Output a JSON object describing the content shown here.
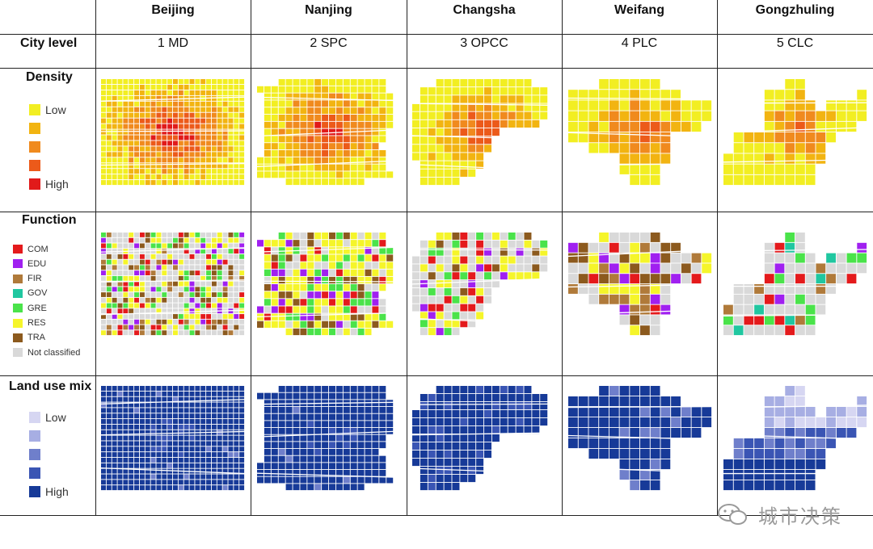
{
  "columns": [
    "Beijing",
    "Nanjing",
    "Changsha",
    "Weifang",
    "Gongzhuling"
  ],
  "city_level": {
    "label": "City level",
    "values": [
      "1 MD",
      "2 SPC",
      "3 OPCC",
      "4 PLC",
      "5 CLC"
    ]
  },
  "density": {
    "label": "Density",
    "legend": [
      {
        "text": "Low",
        "color": "#f2ee22"
      },
      {
        "text": "",
        "color": "#f2b411"
      },
      {
        "text": "",
        "color": "#f08a1e"
      },
      {
        "text": "",
        "color": "#ec5a1a"
      },
      {
        "text": "High",
        "color": "#e11a1a"
      }
    ]
  },
  "function": {
    "label": "Function",
    "legend": [
      {
        "text": "COM",
        "color": "#e41a1c"
      },
      {
        "text": "EDU",
        "color": "#a020f0"
      },
      {
        "text": "FIR",
        "color": "#b07a3a"
      },
      {
        "text": "GOV",
        "color": "#20c7a0"
      },
      {
        "text": "GRE",
        "color": "#4ae34a"
      },
      {
        "text": "RES",
        "color": "#f5f52a"
      },
      {
        "text": "TRA",
        "color": "#8c5a1e"
      },
      {
        "text": "Not classified",
        "color": "#d9d9d9"
      }
    ]
  },
  "land_use_mix": {
    "label": "Land use mix",
    "legend": [
      {
        "text": "Low",
        "color": "#d6d6f2"
      },
      {
        "text": "",
        "color": "#a7aee3"
      },
      {
        "text": "",
        "color": "#6f7fcb"
      },
      {
        "text": "",
        "color": "#3a55b4"
      },
      {
        "text": "High",
        "color": "#173a98"
      }
    ]
  },
  "watermark": {
    "text": "城市决策",
    "icon": "wechat-icon"
  }
}
